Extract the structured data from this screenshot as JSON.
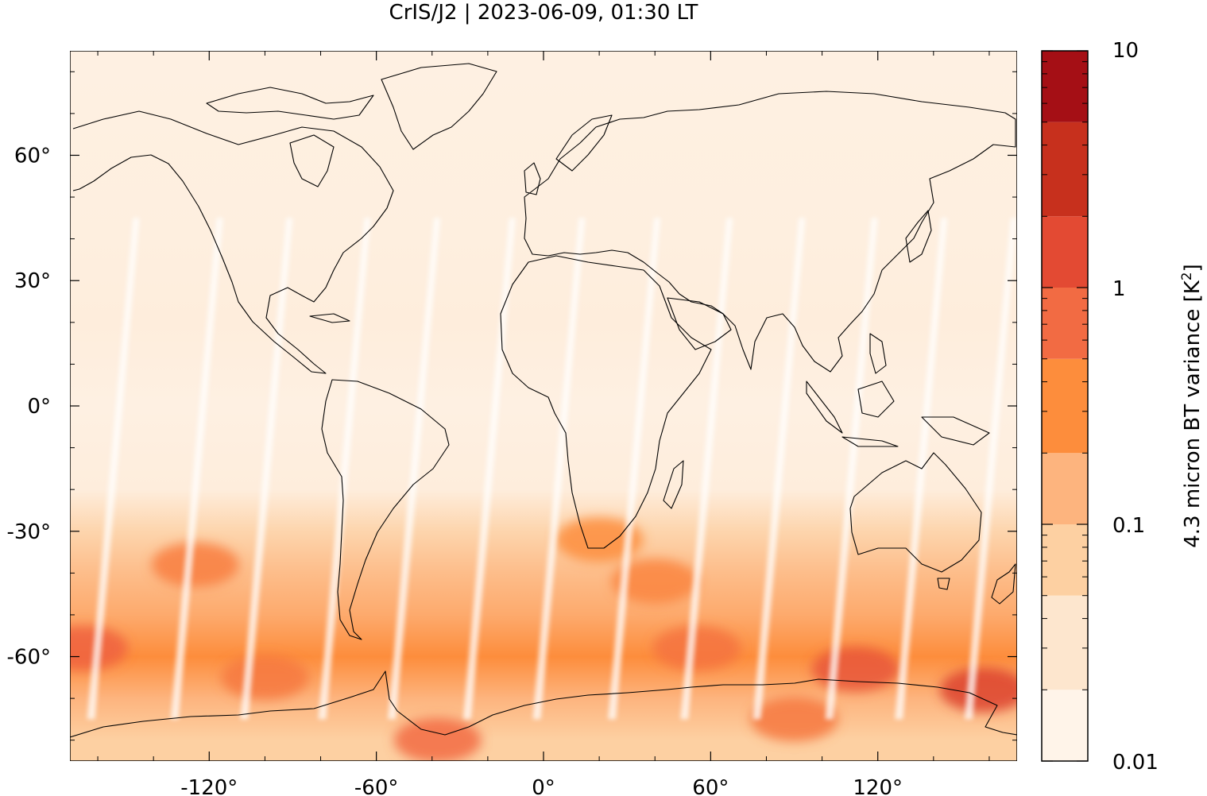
{
  "chart_data": {
    "type": "heatmap",
    "title": "CrIS/J2 | 2023-06-09, 01:30 LT",
    "colorbar_label_text": "4.3 micron BT variance [K",
    "colorbar_label_sup": "2",
    "colorbar_label_close": "]",
    "x_range": [
      -170,
      170
    ],
    "y_range": [
      -85,
      85
    ],
    "x_ticks": [
      {
        "value": -120,
        "label": "-120°"
      },
      {
        "value": -60,
        "label": "-60°"
      },
      {
        "value": 0,
        "label": "0°"
      },
      {
        "value": 60,
        "label": "60°"
      },
      {
        "value": 120,
        "label": "120°"
      }
    ],
    "y_ticks": [
      {
        "value": 60,
        "label": "60°"
      },
      {
        "value": 30,
        "label": "30°"
      },
      {
        "value": 0,
        "label": "0°"
      },
      {
        "value": -30,
        "label": "-30°"
      },
      {
        "value": -60,
        "label": "-60°"
      }
    ],
    "colorbar": {
      "scale": "log",
      "range": [
        0.01,
        10
      ],
      "tick_labels": [
        "10",
        "1",
        "0.1",
        "0.01"
      ],
      "tick_values": [
        10,
        1,
        0.1,
        0.01
      ],
      "levels": [
        0.01,
        0.02,
        0.05,
        0.1,
        0.2,
        0.5,
        1,
        2,
        5,
        10
      ],
      "colors": [
        "#fff4e9",
        "#fde6ce",
        "#fdd0a2",
        "#fdb47e",
        "#fd8d3c",
        "#f26b43",
        "#e34a33",
        "#c7301d",
        "#a50f15"
      ]
    },
    "zonal_mean_variance": [
      {
        "lat": 85,
        "value": 0.012
      },
      {
        "lat": 40,
        "value": 0.013
      },
      {
        "lat": 20,
        "value": 0.014
      },
      {
        "lat": 0,
        "value": 0.012
      },
      {
        "lat": -20,
        "value": 0.014
      },
      {
        "lat": -30,
        "value": 0.04
      },
      {
        "lat": -40,
        "value": 0.08
      },
      {
        "lat": -50,
        "value": 0.12
      },
      {
        "lat": -60,
        "value": 0.2
      },
      {
        "lat": -70,
        "value": 0.1
      },
      {
        "lat": -80,
        "value": 0.05
      }
    ],
    "hotspots": [
      {
        "lon": -165,
        "lat": -58,
        "value": 0.6
      },
      {
        "lon": -100,
        "lat": -65,
        "value": 0.35
      },
      {
        "lon": -125,
        "lat": -38,
        "value": 0.3
      },
      {
        "lon": 55,
        "lat": -58,
        "value": 0.4
      },
      {
        "lon": 112,
        "lat": -63,
        "value": 0.8
      },
      {
        "lon": 158,
        "lat": -68,
        "value": 1.2
      },
      {
        "lon": -38,
        "lat": -80,
        "value": 0.5
      },
      {
        "lon": 90,
        "lat": -75,
        "value": 0.35
      },
      {
        "lon": 40,
        "lat": -42,
        "value": 0.25
      },
      {
        "lon": 20,
        "lat": -32,
        "value": 0.2
      }
    ],
    "gap_stripes_lon": [
      -165,
      -135,
      -110,
      -82,
      -57,
      -30,
      -5,
      22,
      48,
      74,
      100,
      125,
      150
    ]
  }
}
